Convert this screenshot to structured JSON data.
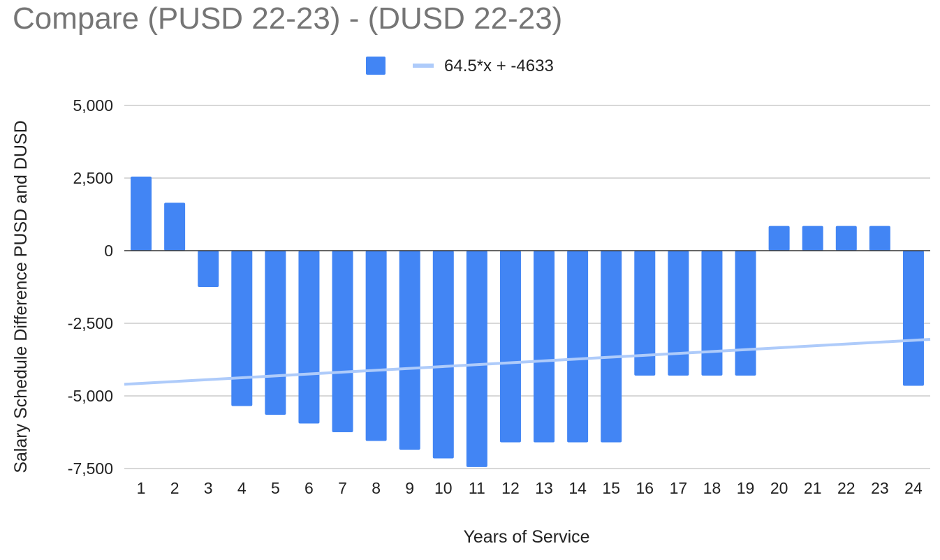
{
  "title": "Compare (PUSD 22-23) - (DUSD 22-23)",
  "chart_data": {
    "type": "bar",
    "categories": [
      "1",
      "2",
      "3",
      "4",
      "5",
      "6",
      "7",
      "8",
      "9",
      "10",
      "11",
      "12",
      "13",
      "14",
      "15",
      "16",
      "17",
      "18",
      "19",
      "20",
      "21",
      "22",
      "23",
      "24"
    ],
    "series": [
      {
        "values": [
          2550,
          1650,
          -1250,
          -5350,
          -5650,
          -5950,
          -6250,
          -6550,
          -6850,
          -7150,
          -7450,
          -6600,
          -6600,
          -6600,
          -6600,
          -4300,
          -4300,
          -4300,
          -4300,
          850,
          850,
          850,
          850,
          -4650
        ],
        "color": "#4285f4"
      }
    ],
    "trendline": {
      "label": "64.5*x + -4633",
      "slope": 64.5,
      "intercept": -4633,
      "color": "#aecbfa"
    },
    "xlabel": "Years of Service",
    "ylabel": "Salary Schedule Difference PUSD and DUSD",
    "ylim": [
      -7500,
      5000
    ],
    "yticks": [
      5000,
      2500,
      0,
      -2500,
      -5000,
      -7500
    ],
    "ytick_labels": [
      "5,000",
      "2,500",
      "0",
      "-2,500",
      "-5,000",
      "-7,500"
    ],
    "grid": true,
    "legend_position": "top"
  }
}
